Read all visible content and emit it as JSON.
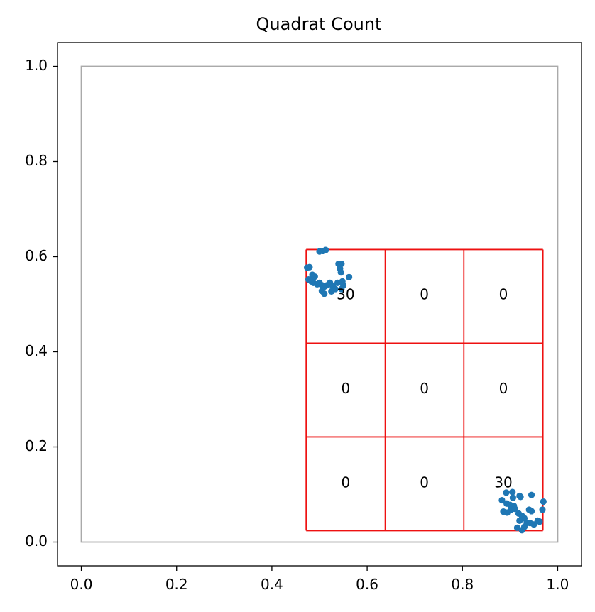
{
  "chart_data": {
    "type": "scatter",
    "title": "Quadrat Count",
    "xlabel": "",
    "ylabel": "",
    "xlim": [
      -0.05,
      1.05
    ],
    "ylim": [
      -0.05,
      1.05
    ],
    "grid": false,
    "x_ticks": [
      "0.0",
      "0.2",
      "0.4",
      "0.6",
      "0.8",
      "1.0"
    ],
    "y_ticks": [
      "0.0",
      "0.2",
      "0.4",
      "0.6",
      "0.8",
      "1.0"
    ],
    "window": {
      "x": [
        0,
        1
      ],
      "y": [
        0,
        1
      ],
      "color": "#aaaaaa"
    },
    "quadrat_grid": {
      "x_edges": [
        0.472,
        0.638,
        0.803,
        0.969
      ],
      "y_edges": [
        0.024,
        0.221,
        0.418,
        0.615
      ],
      "color": "#ee1111",
      "counts": [
        {
          "x": 0.555,
          "y": 0.519,
          "label": "30"
        },
        {
          "x": 0.72,
          "y": 0.519,
          "label": "0"
        },
        {
          "x": 0.886,
          "y": 0.519,
          "label": "0"
        },
        {
          "x": 0.555,
          "y": 0.321,
          "label": "0"
        },
        {
          "x": 0.72,
          "y": 0.321,
          "label": "0"
        },
        {
          "x": 0.886,
          "y": 0.321,
          "label": "0"
        },
        {
          "x": 0.555,
          "y": 0.123,
          "label": "0"
        },
        {
          "x": 0.72,
          "y": 0.123,
          "label": "0"
        },
        {
          "x": 0.886,
          "y": 0.123,
          "label": "30"
        }
      ]
    },
    "series": [
      {
        "color": "#1f77b4",
        "points": [
          [
            0.5,
            0.611
          ],
          [
            0.508,
            0.612
          ],
          [
            0.513,
            0.614
          ],
          [
            0.474,
            0.577
          ],
          [
            0.479,
            0.578
          ],
          [
            0.485,
            0.562
          ],
          [
            0.49,
            0.558
          ],
          [
            0.477,
            0.552
          ],
          [
            0.483,
            0.548
          ],
          [
            0.487,
            0.545
          ],
          [
            0.495,
            0.542
          ],
          [
            0.5,
            0.545
          ],
          [
            0.505,
            0.54
          ],
          [
            0.51,
            0.537
          ],
          [
            0.516,
            0.54
          ],
          [
            0.522,
            0.545
          ],
          [
            0.528,
            0.538
          ],
          [
            0.533,
            0.532
          ],
          [
            0.538,
            0.545
          ],
          [
            0.54,
            0.585
          ],
          [
            0.546,
            0.585
          ],
          [
            0.543,
            0.575
          ],
          [
            0.545,
            0.567
          ],
          [
            0.562,
            0.557
          ],
          [
            0.548,
            0.548
          ],
          [
            0.55,
            0.54
          ],
          [
            0.505,
            0.528
          ],
          [
            0.525,
            0.527
          ],
          [
            0.51,
            0.522
          ],
          [
            0.546,
            0.532
          ],
          [
            0.883,
            0.088
          ],
          [
            0.892,
            0.104
          ],
          [
            0.905,
            0.105
          ],
          [
            0.906,
            0.093
          ],
          [
            0.893,
            0.081
          ],
          [
            0.9,
            0.078
          ],
          [
            0.908,
            0.076
          ],
          [
            0.886,
            0.064
          ],
          [
            0.894,
            0.062
          ],
          [
            0.902,
            0.068
          ],
          [
            0.91,
            0.07
          ],
          [
            0.92,
            0.097
          ],
          [
            0.922,
            0.095
          ],
          [
            0.945,
            0.099
          ],
          [
            0.97,
            0.085
          ],
          [
            0.968,
            0.068
          ],
          [
            0.94,
            0.068
          ],
          [
            0.945,
            0.065
          ],
          [
            0.918,
            0.06
          ],
          [
            0.925,
            0.055
          ],
          [
            0.93,
            0.05
          ],
          [
            0.92,
            0.045
          ],
          [
            0.935,
            0.04
          ],
          [
            0.942,
            0.04
          ],
          [
            0.95,
            0.037
          ],
          [
            0.958,
            0.045
          ],
          [
            0.962,
            0.043
          ],
          [
            0.915,
            0.03
          ],
          [
            0.925,
            0.025
          ],
          [
            0.93,
            0.032
          ]
        ]
      }
    ]
  }
}
